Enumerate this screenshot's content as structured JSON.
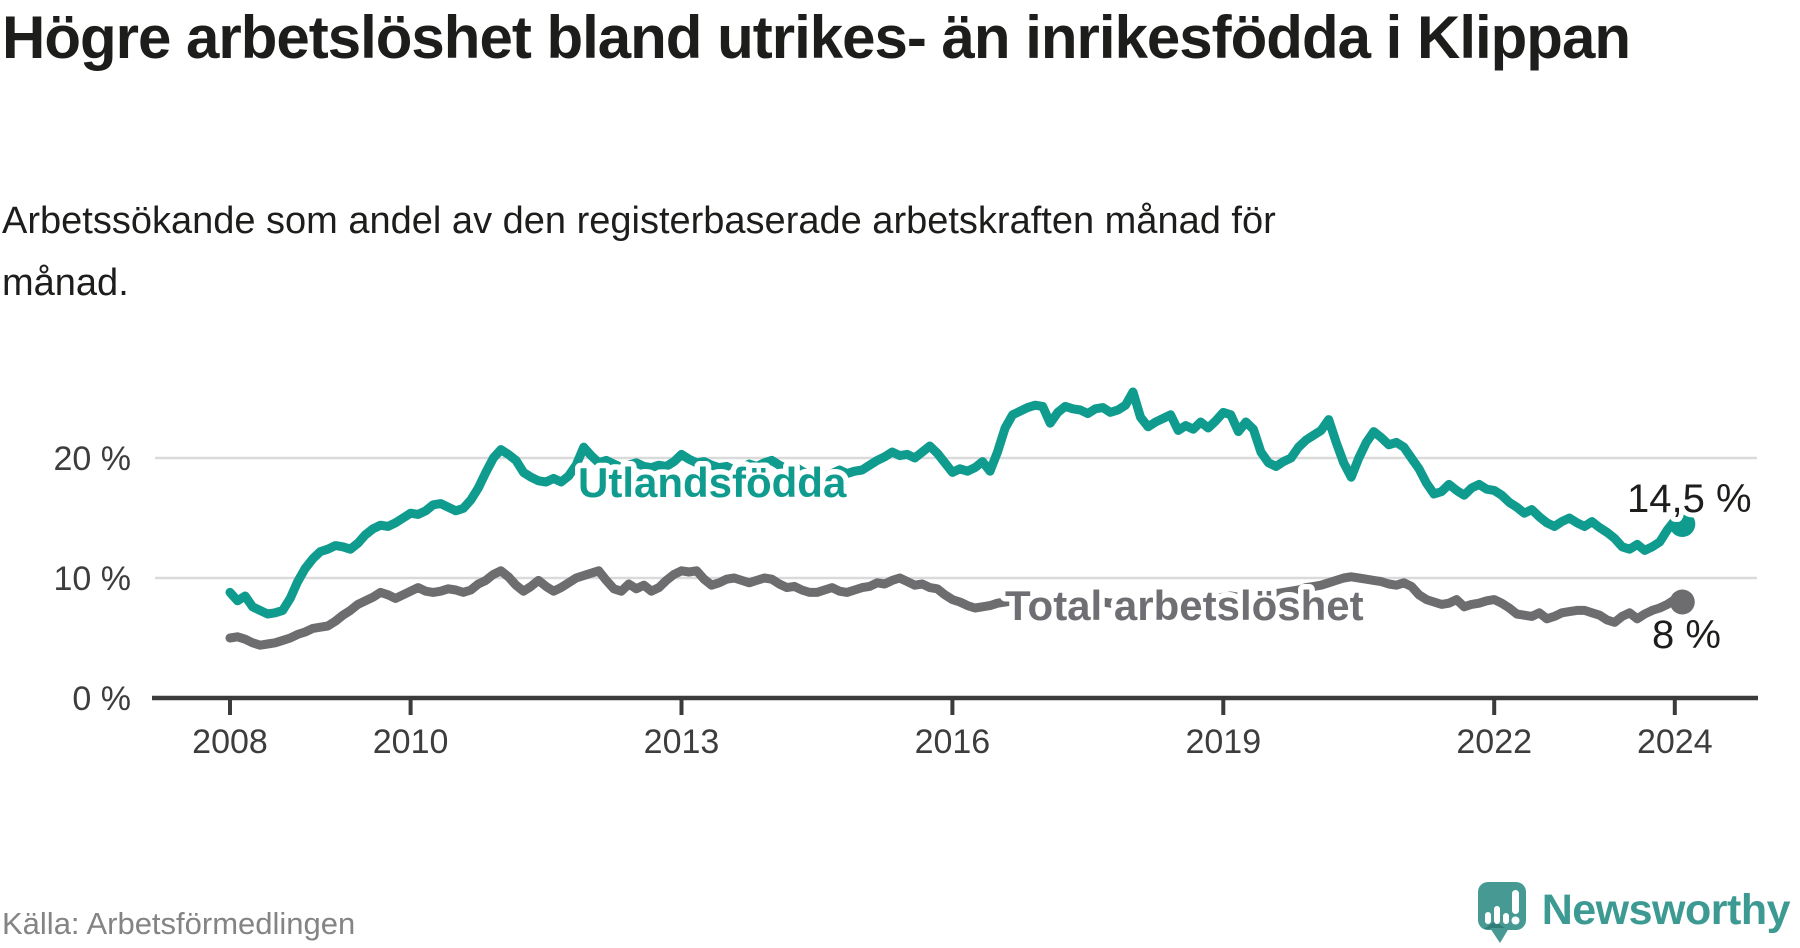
{
  "header": {
    "title": "Högre arbetslöshet bland utrikes- än inrikesfödda i Klippan",
    "subtitle": "Arbetssökande som andel av den registerbaserade arbetskraften månad för månad."
  },
  "footer": {
    "source": "Källa: Arbetsförmedlingen",
    "brand": "Newsworthy"
  },
  "colors": {
    "series_foreign": "#0f9b8e",
    "series_total": "#6d6d70",
    "series_total_label": "#6f6f73",
    "axis": "#3b3b3b",
    "gridline": "#dadada",
    "text": "#1d1d1b",
    "muted_gray": "#848484",
    "brand_teal": "#479a94",
    "brand_teal_dark": "#2f7d79"
  },
  "chart_data": {
    "type": "line",
    "x_start_year": 2008,
    "x_step_months": 1,
    "x_end_year_approx": 2024.08,
    "x_ticks": [
      2008,
      2010,
      2013,
      2016,
      2019,
      2022,
      2024
    ],
    "y_ticks": [
      {
        "value": 0,
        "label": "0 %"
      },
      {
        "value": 10,
        "label": "10 %"
      },
      {
        "value": 20,
        "label": "20 %"
      }
    ],
    "ylim": [
      0,
      26.5
    ],
    "grid": "horizontal-only",
    "legend_position": "inline-labels",
    "series": [
      {
        "name": "Utlandsfödda",
        "color": "#0f9b8e",
        "end_label": "14,5 %",
        "end_value": 14.5,
        "values": [
          8.8,
          8.1,
          8.5,
          7.6,
          7.3,
          7.0,
          7.1,
          7.3,
          8.3,
          9.7,
          10.8,
          11.6,
          12.2,
          12.4,
          12.7,
          12.6,
          12.4,
          12.9,
          13.6,
          14.1,
          14.4,
          14.3,
          14.6,
          15.0,
          15.4,
          15.3,
          15.6,
          16.1,
          16.2,
          15.9,
          15.6,
          15.8,
          16.5,
          17.5,
          18.8,
          20.0,
          20.7,
          20.3,
          19.8,
          18.8,
          18.4,
          18.1,
          18.0,
          18.3,
          18.0,
          18.5,
          19.4,
          20.9,
          20.2,
          19.6,
          19.8,
          19.5,
          19.2,
          19.4,
          19.6,
          19.3,
          19.2,
          19.4,
          19.3,
          19.7,
          20.3,
          19.9,
          19.6,
          19.7,
          19.4,
          19.2,
          19.3,
          19.0,
          19.2,
          19.5,
          19.3,
          19.6,
          19.8,
          19.4,
          19.1,
          19.3,
          18.9,
          18.6,
          18.8,
          18.5,
          18.7,
          19.0,
          18.7,
          18.9,
          19.0,
          19.4,
          19.8,
          20.1,
          20.5,
          20.2,
          20.3,
          20.0,
          20.5,
          21.0,
          20.4,
          19.6,
          18.8,
          19.1,
          18.9,
          19.2,
          19.7,
          18.9,
          20.5,
          22.5,
          23.6,
          23.9,
          24.2,
          24.4,
          24.3,
          22.9,
          23.8,
          24.3,
          24.1,
          24.0,
          23.7,
          24.1,
          24.2,
          23.8,
          24.0,
          24.4,
          25.5,
          23.4,
          22.6,
          23.0,
          23.3,
          23.6,
          22.3,
          22.7,
          22.4,
          23.0,
          22.5,
          23.1,
          23.8,
          23.6,
          22.2,
          23.0,
          22.4,
          20.5,
          19.6,
          19.3,
          19.7,
          20.0,
          20.9,
          21.5,
          21.9,
          22.3,
          23.2,
          21.3,
          19.6,
          18.4,
          20.0,
          21.3,
          22.2,
          21.7,
          21.1,
          21.3,
          20.9,
          20.0,
          19.1,
          17.9,
          17.0,
          17.2,
          17.8,
          17.3,
          16.9,
          17.5,
          17.8,
          17.4,
          17.3,
          16.9,
          16.3,
          15.9,
          15.4,
          15.7,
          15.1,
          14.6,
          14.3,
          14.7,
          15.0,
          14.6,
          14.3,
          14.7,
          14.2,
          13.8,
          13.3,
          12.6,
          12.4,
          12.8,
          12.3,
          12.6,
          13.0,
          14.0,
          14.8,
          14.5
        ]
      },
      {
        "name": "Total arbetslöshet",
        "color": "#6d6d70",
        "end_label": "8 %",
        "end_value": 8.0,
        "values": [
          5.0,
          5.1,
          4.9,
          4.6,
          4.4,
          4.5,
          4.6,
          4.8,
          5.0,
          5.3,
          5.5,
          5.8,
          5.9,
          6.0,
          6.4,
          6.9,
          7.3,
          7.8,
          8.1,
          8.4,
          8.8,
          8.6,
          8.3,
          8.6,
          8.9,
          9.2,
          8.9,
          8.8,
          8.9,
          9.1,
          9.0,
          8.8,
          9.0,
          9.5,
          9.8,
          10.3,
          10.6,
          10.1,
          9.4,
          8.9,
          9.3,
          9.8,
          9.3,
          8.9,
          9.2,
          9.6,
          10.0,
          10.2,
          10.4,
          10.6,
          9.8,
          9.1,
          8.9,
          9.5,
          9.1,
          9.4,
          8.9,
          9.2,
          9.8,
          10.3,
          10.6,
          10.5,
          10.6,
          9.9,
          9.4,
          9.6,
          9.9,
          10.0,
          9.8,
          9.6,
          9.8,
          10.0,
          9.9,
          9.5,
          9.2,
          9.3,
          9.0,
          8.8,
          8.8,
          9.0,
          9.2,
          8.9,
          8.8,
          9.0,
          9.2,
          9.3,
          9.6,
          9.5,
          9.8,
          10.0,
          9.7,
          9.4,
          9.5,
          9.2,
          9.1,
          8.6,
          8.2,
          8.0,
          7.7,
          7.5,
          7.6,
          7.7,
          7.9,
          8.0,
          8.1,
          8.0,
          7.9,
          8.0,
          8.1,
          8.2,
          8.0,
          7.9,
          7.8,
          7.9,
          8.0,
          8.1,
          8.0,
          7.9,
          8.0,
          8.1,
          8.2,
          8.1,
          8.0,
          7.9,
          7.8,
          7.9,
          7.8,
          7.9,
          8.0,
          8.1,
          8.2,
          8.3,
          8.4,
          8.5,
          8.4,
          8.5,
          8.6,
          8.5,
          8.6,
          8.7,
          8.8,
          8.9,
          9.0,
          9.2,
          9.3,
          9.4,
          9.6,
          9.8,
          10.0,
          10.1,
          10.0,
          9.9,
          9.8,
          9.7,
          9.5,
          9.4,
          9.6,
          9.3,
          8.6,
          8.2,
          8.0,
          7.8,
          7.9,
          8.2,
          7.6,
          7.8,
          7.9,
          8.1,
          8.2,
          7.9,
          7.5,
          7.0,
          6.9,
          6.8,
          7.1,
          6.6,
          6.8,
          7.1,
          7.2,
          7.3,
          7.3,
          7.1,
          6.9,
          6.5,
          6.3,
          6.8,
          7.1,
          6.6,
          7.0,
          7.3,
          7.5,
          7.8,
          8.2,
          8.0
        ]
      }
    ]
  }
}
